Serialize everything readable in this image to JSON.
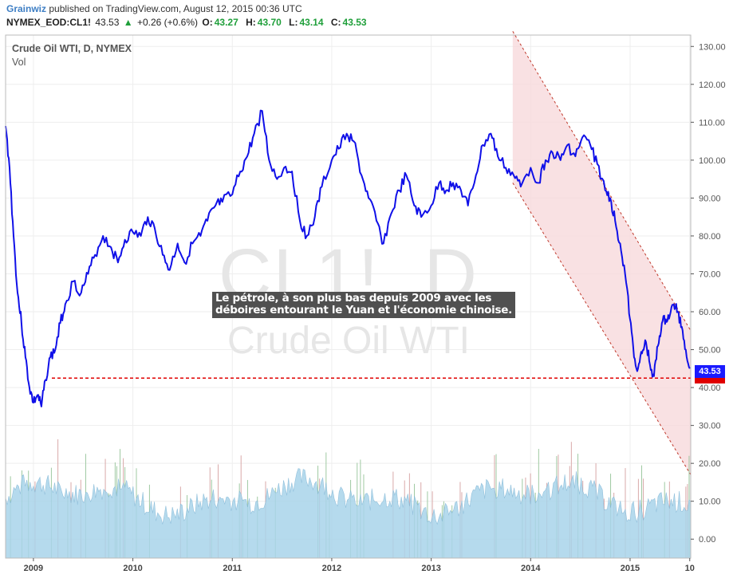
{
  "header": {
    "author": "Grainwiz",
    "published_text": "published on TradingView.com, August 12, 2015 00:36 UTC",
    "symbol": "NYMEX_EOD:CL1!",
    "last": "43.53",
    "change_arrow": "▲",
    "change": "+0.26 (+0.6%)",
    "open_label": "O:",
    "open": "43.27",
    "high_label": "H:",
    "high": "43.70",
    "low_label": "L:",
    "low": "43.14",
    "close_label": "C:",
    "close": "43.53"
  },
  "watermark": {
    "symbol": "CL1!, D",
    "name": "Crude Oil WTI"
  },
  "annotation": {
    "line1": "Le pétrole, à son plus bas depuis 2009 avec les",
    "line2": "déboires entourant le Yuan et l'économie chinoise."
  },
  "price_tag": "43.53",
  "colors": {
    "price_line": "#1010e8",
    "support_line": "#e00000",
    "channel_fill": "#f7d9dc",
    "channel_edge": "#c0392b",
    "volume_fill": "#a9d4ea"
  },
  "chart_data": {
    "type": "line",
    "title": "Crude Oil WTI, D, NYMEX",
    "subtitle": "Vol",
    "ylim": [
      -5,
      133
    ],
    "yticks": [
      "130.00",
      "120.00",
      "110.00",
      "100.00",
      "90.00",
      "80.00",
      "70.00",
      "60.00",
      "50.00",
      "40.00",
      "30.00",
      "20.00",
      "10.00",
      "0.00"
    ],
    "ytick_values": [
      130,
      120,
      110,
      100,
      90,
      80,
      70,
      60,
      50,
      40,
      30,
      20,
      10,
      0
    ],
    "xticks": [
      "2009",
      "2010",
      "2011",
      "2012",
      "2013",
      "2014",
      "2015",
      "10"
    ],
    "xtick_values": [
      2009.0,
      2010.0,
      2011.0,
      2012.0,
      2013.0,
      2014.0,
      2015.0,
      2015.6
    ],
    "xlim": [
      2008.72,
      2015.61
    ],
    "grid": true,
    "series": [
      {
        "name": "CL1!",
        "x": [
          2008.72,
          2008.76,
          2008.8,
          2008.84,
          2008.88,
          2008.92,
          2008.96,
          2009.0,
          2009.04,
          2009.08,
          2009.12,
          2009.17,
          2009.22,
          2009.27,
          2009.32,
          2009.4,
          2009.48,
          2009.55,
          2009.62,
          2009.7,
          2009.78,
          2009.85,
          2009.92,
          2010.0,
          2010.08,
          2010.15,
          2010.22,
          2010.3,
          2010.37,
          2010.45,
          2010.52,
          2010.6,
          2010.68,
          2010.75,
          2010.83,
          2010.9,
          2011.0,
          2011.08,
          2011.15,
          2011.22,
          2011.3,
          2011.37,
          2011.45,
          2011.52,
          2011.6,
          2011.68,
          2011.75,
          2011.83,
          2011.9,
          2012.0,
          2012.07,
          2012.15,
          2012.22,
          2012.3,
          2012.37,
          2012.45,
          2012.52,
          2012.6,
          2012.68,
          2012.75,
          2012.83,
          2012.9,
          2013.0,
          2013.08,
          2013.15,
          2013.22,
          2013.3,
          2013.37,
          2013.45,
          2013.52,
          2013.6,
          2013.67,
          2013.75,
          2013.83,
          2013.9,
          2014.0,
          2014.08,
          2014.15,
          2014.22,
          2014.3,
          2014.37,
          2014.45,
          2014.52,
          2014.6,
          2014.67,
          2014.75,
          2014.8,
          2014.85,
          2014.9,
          2014.95,
          2015.0,
          2015.04,
          2015.08,
          2015.12,
          2015.16,
          2015.2,
          2015.24,
          2015.28,
          2015.32,
          2015.36,
          2015.4,
          2015.44,
          2015.48,
          2015.52,
          2015.56,
          2015.6
        ],
        "y": [
          109,
          98,
          80,
          65,
          57,
          48,
          40,
          36,
          38,
          35,
          42,
          48,
          50,
          57,
          62,
          68,
          65,
          70,
          75,
          80,
          77,
          73,
          79,
          81,
          80,
          85,
          82,
          75,
          71,
          78,
          73,
          78,
          80,
          84,
          88,
          89,
          91,
          97,
          101,
          107,
          113,
          100,
          95,
          98,
          97,
          84,
          80,
          85,
          93,
          100,
          103,
          107,
          105,
          96,
          90,
          84,
          78,
          86,
          92,
          96,
          88,
          85,
          88,
          94,
          92,
          94,
          92,
          88,
          96,
          104,
          107,
          101,
          98,
          96,
          93,
          98,
          94,
          100,
          102,
          100,
          104,
          101,
          106,
          104,
          99,
          92,
          90,
          84,
          78,
          70,
          58,
          48,
          45,
          49,
          52,
          46,
          43,
          51,
          57,
          58,
          59,
          62,
          60,
          56,
          50,
          45
        ]
      }
    ],
    "support_line": 42.5,
    "channel": {
      "x_start": 2013.82,
      "upper": [
        [
          2013.82,
          134
        ],
        [
          2015.61,
          55
        ]
      ],
      "lower": [
        [
          2013.82,
          94
        ],
        [
          2015.61,
          17
        ]
      ]
    },
    "volume_note": "Vol histogram (scaled to 0–25 range on same axis)"
  }
}
